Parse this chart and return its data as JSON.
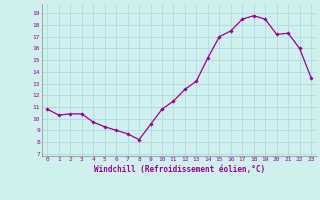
{
  "x": [
    0,
    1,
    2,
    3,
    4,
    5,
    6,
    7,
    8,
    9,
    10,
    11,
    12,
    13,
    14,
    15,
    16,
    17,
    18,
    19,
    20,
    21,
    22,
    23
  ],
  "y": [
    10.8,
    10.3,
    10.4,
    10.4,
    9.7,
    9.3,
    9.0,
    8.7,
    8.2,
    9.5,
    10.8,
    11.5,
    12.5,
    13.2,
    15.2,
    17.0,
    17.5,
    18.5,
    18.8,
    18.5,
    17.2,
    17.3,
    16.0,
    13.5
  ],
  "color": "#990099",
  "bg_color": "#d0f0f0",
  "grid_color": "#aadddd",
  "xlabel": "Windchill (Refroidissement éolien,°C)",
  "ylim": [
    6.8,
    19.8
  ],
  "yticks": [
    7,
    8,
    9,
    10,
    11,
    12,
    13,
    14,
    15,
    16,
    17,
    18,
    19
  ],
  "xlim": [
    -0.5,
    23.5
  ],
  "xticks": [
    0,
    1,
    2,
    3,
    4,
    5,
    6,
    7,
    8,
    9,
    10,
    11,
    12,
    13,
    14,
    15,
    16,
    17,
    18,
    19,
    20,
    21,
    22,
    23
  ],
  "marker": "D",
  "markersize": 1.8,
  "linewidth": 0.9,
  "ylabel_fontsize": 5.0,
  "xlabel_fontsize": 5.5,
  "tick_fontsize": 4.5
}
